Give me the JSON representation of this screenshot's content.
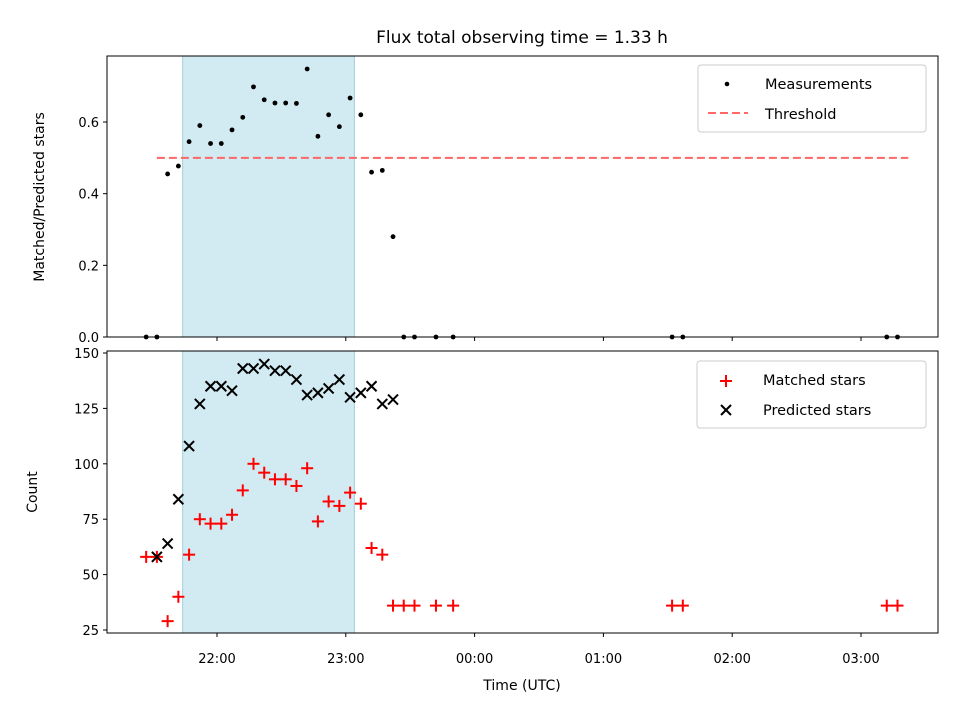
{
  "chart_data": [
    {
      "type": "scatter",
      "title": "Flux total observing time = 1.33 h",
      "xlabel": "",
      "ylabel": "Matched/Predicted stars",
      "ylim": [
        0,
        0.78
      ],
      "yticks": [
        "0.0",
        "0.2",
        "0.4",
        "0.6"
      ],
      "ytick_values": [
        0,
        0.2,
        0.4,
        0.6
      ],
      "shaded_region": {
        "x_start": "21:44",
        "x_end": "23:04",
        "color": "#add8e6"
      },
      "threshold": {
        "name": "Threshold",
        "value": 0.5,
        "x_start": "21:32",
        "x_end": "03:22",
        "color": "#ff6666"
      },
      "legend_position": "top-right",
      "series": [
        {
          "name": "Measurements",
          "marker": "dot",
          "color": "#000000",
          "x": [
            "21:27",
            "21:32",
            "21:37",
            "21:42",
            "21:47",
            "21:52",
            "21:57",
            "22:02",
            "22:07",
            "22:12",
            "22:17",
            "22:22",
            "22:27",
            "22:32",
            "22:37",
            "22:42",
            "22:47",
            "22:52",
            "22:57",
            "23:02",
            "23:07",
            "23:12",
            "23:17",
            "23:22",
            "23:27",
            "23:32",
            "23:42",
            "23:50",
            "01:32",
            "01:37",
            "03:12",
            "03:17"
          ],
          "y": [
            0.0,
            0.0,
            0.455,
            0.477,
            0.545,
            0.59,
            0.54,
            0.54,
            0.578,
            0.613,
            0.698,
            0.662,
            0.653,
            0.653,
            0.652,
            0.748,
            0.56,
            0.62,
            0.587,
            0.667,
            0.62,
            0.46,
            0.465,
            0.28,
            0.0,
            0.0,
            0.0,
            0.0,
            0.0,
            0.0,
            0.0,
            0.0
          ]
        }
      ]
    },
    {
      "type": "scatter",
      "title": "",
      "xlabel": "Time (UTC)",
      "ylabel": "Count",
      "ylim": [
        23,
        151
      ],
      "yticks": [
        "25",
        "50",
        "75",
        "100",
        "125",
        "150"
      ],
      "ytick_values": [
        25,
        50,
        75,
        100,
        125,
        150
      ],
      "xticks": [
        "22:00",
        "23:00",
        "00:00",
        "01:00",
        "02:00",
        "03:00"
      ],
      "shaded_region": {
        "x_start": "21:44",
        "x_end": "23:04",
        "color": "#add8e6"
      },
      "legend_position": "top-right",
      "series": [
        {
          "name": "Matched stars",
          "marker": "plus",
          "color": "#ff0000",
          "x": [
            "21:27",
            "21:32",
            "21:37",
            "21:42",
            "21:47",
            "21:52",
            "21:57",
            "22:02",
            "22:07",
            "22:12",
            "22:17",
            "22:22",
            "22:27",
            "22:32",
            "22:37",
            "22:42",
            "22:47",
            "22:52",
            "22:57",
            "23:02",
            "23:07",
            "23:12",
            "23:17",
            "23:22",
            "23:27",
            "23:32",
            "23:42",
            "23:50",
            "01:32",
            "01:37",
            "03:12",
            "03:17"
          ],
          "y": [
            58,
            58,
            29,
            40,
            59,
            75,
            73,
            73,
            77,
            88,
            100,
            96,
            93,
            93,
            90,
            98,
            74,
            83,
            81,
            87,
            82,
            62,
            59,
            36,
            36,
            36,
            36,
            36,
            36,
            36,
            36,
            36
          ]
        },
        {
          "name": "Predicted stars",
          "marker": "x",
          "color": "#000000",
          "x": [
            "21:32",
            "21:37",
            "21:42",
            "21:47",
            "21:52",
            "21:57",
            "22:02",
            "22:07",
            "22:12",
            "22:17",
            "22:22",
            "22:27",
            "22:32",
            "22:37",
            "22:42",
            "22:47",
            "22:52",
            "22:57",
            "23:02",
            "23:07",
            "23:12",
            "23:17",
            "23:22"
          ],
          "y": [
            58,
            64,
            84,
            108,
            127,
            135,
            135,
            133,
            143,
            143,
            145,
            142,
            142,
            138,
            131,
            132,
            134,
            138,
            130,
            132,
            135,
            127,
            129
          ]
        }
      ]
    }
  ]
}
